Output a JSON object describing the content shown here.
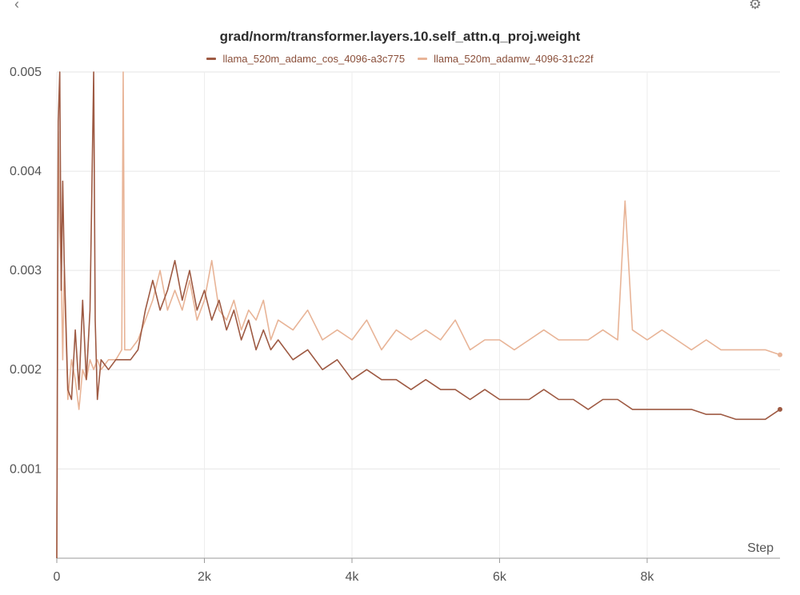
{
  "icons": {
    "back": "chevron-left-icon",
    "settings": "gear-icon"
  },
  "chart_data": {
    "type": "line",
    "title": "grad/norm/transformer.layers.10.self_attn.q_proj.weight",
    "xlabel": "Step",
    "ylabel": "",
    "xlim": [
      0,
      9800
    ],
    "ylim": [
      0.0001,
      0.005
    ],
    "grid": true,
    "legend": "top-center",
    "x_ticks": [
      {
        "value": 0,
        "label": "0"
      },
      {
        "value": 2000,
        "label": "2k"
      },
      {
        "value": 4000,
        "label": "4k"
      },
      {
        "value": 6000,
        "label": "6k"
      },
      {
        "value": 8000,
        "label": "8k"
      }
    ],
    "y_ticks": [
      {
        "value": 0.001,
        "label": "0.001"
      },
      {
        "value": 0.002,
        "label": "0.002"
      },
      {
        "value": 0.003,
        "label": "0.003"
      },
      {
        "value": 0.004,
        "label": "0.004"
      },
      {
        "value": 0.005,
        "label": "0.005"
      }
    ],
    "series": [
      {
        "name": "llama_520m_adamc_cos_4096-a3c775",
        "color": "#9e5a43",
        "x": [
          0,
          20,
          40,
          60,
          80,
          100,
          150,
          200,
          250,
          300,
          350,
          400,
          450,
          500,
          520,
          550,
          600,
          700,
          800,
          900,
          1000,
          1100,
          1200,
          1300,
          1400,
          1500,
          1600,
          1700,
          1800,
          1900,
          2000,
          2100,
          2200,
          2300,
          2400,
          2500,
          2600,
          2700,
          2800,
          2900,
          3000,
          3200,
          3400,
          3600,
          3800,
          4000,
          4200,
          4400,
          4600,
          4800,
          5000,
          5200,
          5400,
          5600,
          5800,
          6000,
          6200,
          6400,
          6600,
          6800,
          7000,
          7200,
          7400,
          7600,
          7800,
          8000,
          8200,
          8400,
          8600,
          8800,
          9000,
          9200,
          9400,
          9600,
          9800
        ],
        "values": [
          0.0001,
          0.0045,
          0.005,
          0.0028,
          0.0039,
          0.0031,
          0.0018,
          0.0017,
          0.0024,
          0.0018,
          0.0027,
          0.0019,
          0.0026,
          0.005,
          0.0025,
          0.0017,
          0.0021,
          0.002,
          0.0021,
          0.0021,
          0.0021,
          0.0022,
          0.0026,
          0.0029,
          0.0026,
          0.0028,
          0.0031,
          0.0027,
          0.003,
          0.0026,
          0.0028,
          0.0025,
          0.0027,
          0.0024,
          0.0026,
          0.0023,
          0.0025,
          0.0022,
          0.0024,
          0.0022,
          0.0023,
          0.0021,
          0.0022,
          0.002,
          0.0021,
          0.0019,
          0.002,
          0.0019,
          0.0019,
          0.0018,
          0.0019,
          0.0018,
          0.0018,
          0.0017,
          0.0018,
          0.0017,
          0.0017,
          0.0017,
          0.0018,
          0.0017,
          0.0017,
          0.0016,
          0.0017,
          0.0017,
          0.0016,
          0.0016,
          0.0016,
          0.0016,
          0.0016,
          0.00155,
          0.00155,
          0.0015,
          0.0015,
          0.0015,
          0.0016
        ]
      },
      {
        "name": "llama_520m_adamw_4096-31c22f",
        "color": "#e8b497",
        "x": [
          0,
          20,
          40,
          60,
          80,
          100,
          150,
          200,
          250,
          300,
          350,
          400,
          450,
          500,
          550,
          600,
          700,
          800,
          880,
          900,
          920,
          1000,
          1100,
          1200,
          1300,
          1400,
          1500,
          1600,
          1700,
          1800,
          1900,
          2000,
          2100,
          2200,
          2300,
          2400,
          2500,
          2600,
          2700,
          2800,
          2900,
          3000,
          3200,
          3400,
          3600,
          3800,
          4000,
          4200,
          4400,
          4600,
          4800,
          5000,
          5200,
          5400,
          5600,
          5800,
          6000,
          6200,
          6400,
          6600,
          6800,
          7000,
          7200,
          7400,
          7600,
          7700,
          7800,
          8000,
          8200,
          8400,
          8600,
          8800,
          9000,
          9200,
          9400,
          9600,
          9800
        ],
        "values": [
          0.0001,
          0.0044,
          0.0034,
          0.003,
          0.0021,
          0.003,
          0.0017,
          0.0021,
          0.0019,
          0.0016,
          0.002,
          0.0019,
          0.0021,
          0.002,
          0.0021,
          0.002,
          0.0021,
          0.0021,
          0.0022,
          0.005,
          0.0022,
          0.0022,
          0.0023,
          0.0025,
          0.0027,
          0.003,
          0.0026,
          0.0028,
          0.0026,
          0.0029,
          0.0025,
          0.0027,
          0.0031,
          0.0026,
          0.0025,
          0.0027,
          0.0024,
          0.0026,
          0.0025,
          0.0027,
          0.0023,
          0.0025,
          0.0024,
          0.0026,
          0.0023,
          0.0024,
          0.0023,
          0.0025,
          0.0022,
          0.0024,
          0.0023,
          0.0024,
          0.0023,
          0.0025,
          0.0022,
          0.0023,
          0.0023,
          0.0022,
          0.0023,
          0.0024,
          0.0023,
          0.0023,
          0.0023,
          0.0024,
          0.0023,
          0.0037,
          0.0024,
          0.0023,
          0.0024,
          0.0023,
          0.0022,
          0.0023,
          0.0022,
          0.0022,
          0.0022,
          0.0022,
          0.00215
        ]
      }
    ]
  }
}
